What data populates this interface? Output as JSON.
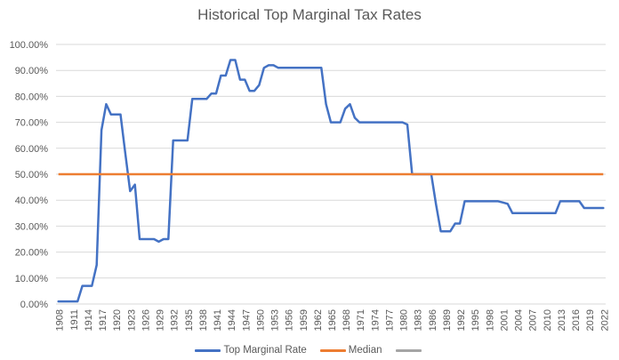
{
  "chart_data": {
    "type": "line",
    "title": "Historical Top Marginal Tax Rates",
    "x": [
      1908,
      1909,
      1910,
      1911,
      1912,
      1913,
      1914,
      1915,
      1916,
      1917,
      1918,
      1919,
      1920,
      1921,
      1922,
      1923,
      1924,
      1925,
      1926,
      1927,
      1928,
      1929,
      1930,
      1931,
      1932,
      1933,
      1934,
      1935,
      1936,
      1937,
      1938,
      1939,
      1940,
      1941,
      1942,
      1943,
      1944,
      1945,
      1946,
      1947,
      1948,
      1949,
      1950,
      1951,
      1952,
      1953,
      1954,
      1955,
      1956,
      1957,
      1958,
      1959,
      1960,
      1961,
      1962,
      1963,
      1964,
      1965,
      1966,
      1967,
      1968,
      1969,
      1970,
      1971,
      1972,
      1973,
      1974,
      1975,
      1976,
      1977,
      1978,
      1979,
      1980,
      1981,
      1982,
      1983,
      1984,
      1985,
      1986,
      1987,
      1988,
      1989,
      1990,
      1991,
      1992,
      1993,
      1994,
      1995,
      1996,
      1997,
      1998,
      1999,
      2000,
      2001,
      2002,
      2003,
      2004,
      2005,
      2006,
      2007,
      2008,
      2009,
      2010,
      2011,
      2012,
      2013,
      2014,
      2015,
      2016,
      2017,
      2018,
      2019,
      2020,
      2021,
      2022
    ],
    "series": [
      {
        "name": "Top Marginal Rate",
        "color": "#4472C4",
        "values": [
          1,
          1,
          1,
          1,
          1,
          7,
          7,
          7,
          15,
          67,
          77,
          73,
          73,
          73,
          58,
          43.5,
          46,
          25,
          25,
          25,
          25,
          24,
          25,
          25,
          63,
          63,
          63,
          63,
          79,
          79,
          79,
          79,
          81.1,
          81.1,
          88,
          88,
          94,
          94,
          86.45,
          86.45,
          82.13,
          82.13,
          84.36,
          91,
          92,
          92,
          91,
          91,
          91,
          91,
          91,
          91,
          91,
          91,
          91,
          91,
          77,
          70,
          70,
          70,
          75.25,
          77,
          71.75,
          70,
          70,
          70,
          70,
          70,
          70,
          70,
          70,
          70,
          70,
          69.13,
          50,
          50,
          50,
          50,
          50,
          38.5,
          28,
          28,
          28,
          31,
          31,
          39.6,
          39.6,
          39.6,
          39.6,
          39.6,
          39.6,
          39.6,
          39.6,
          39.1,
          38.6,
          35,
          35,
          35,
          35,
          35,
          35,
          35,
          35,
          35,
          35,
          39.6,
          39.6,
          39.6,
          39.6,
          39.6,
          37,
          37,
          37,
          37,
          37
        ]
      },
      {
        "name": "Median",
        "color": "#ED7D31",
        "constant": 50
      },
      {
        "name": "",
        "color": "#A5A5A5",
        "values": []
      }
    ],
    "ylim": [
      0,
      100
    ],
    "ytick_step": 10,
    "ytick_format": "0.00%",
    "xtick_every": 3,
    "grid": true,
    "legend_position": "bottom"
  }
}
